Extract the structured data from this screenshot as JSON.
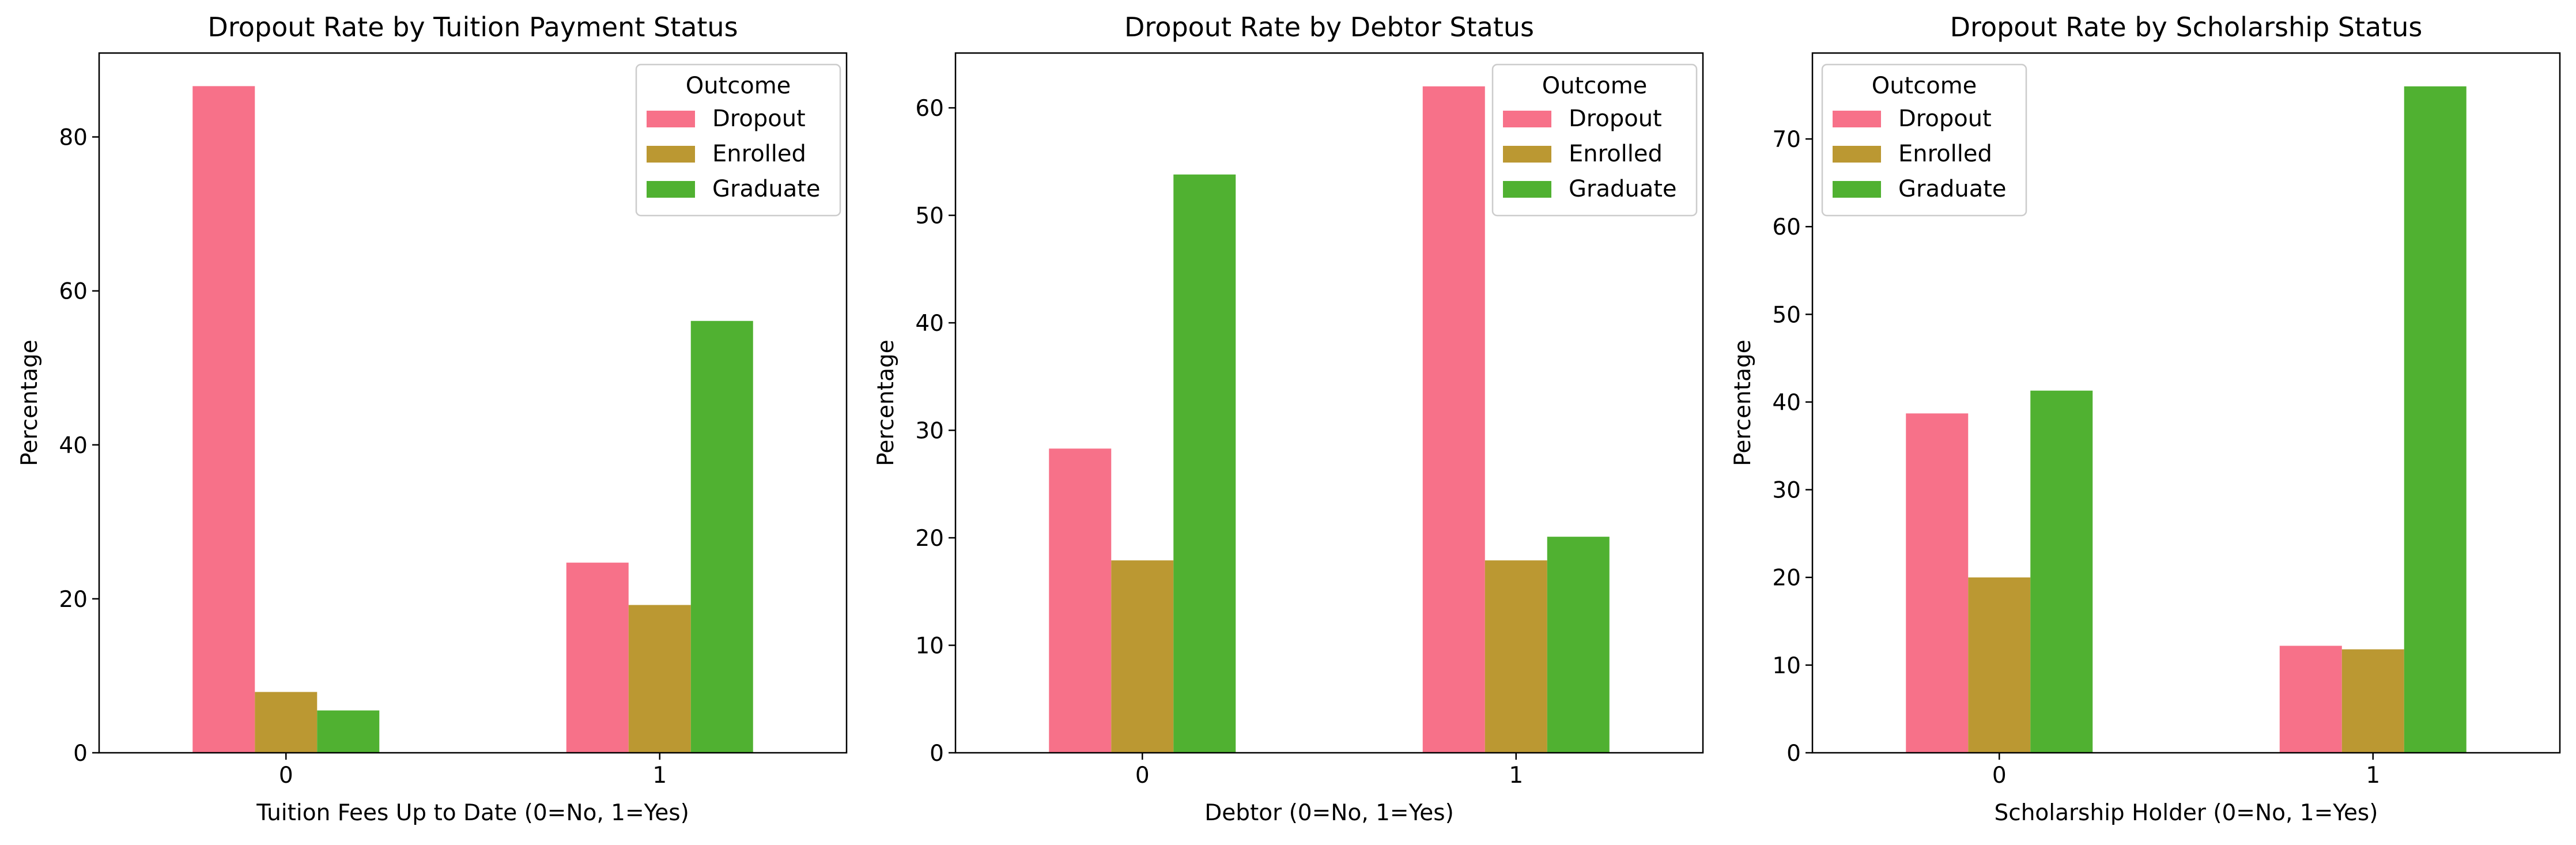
{
  "chart_data": [
    {
      "type": "bar",
      "title": "Dropout Rate by Tuition Payment Status",
      "xlabel": "Tuition Fees Up to Date (0=No, 1=Yes)",
      "ylabel": "Percentage",
      "categories": [
        "0",
        "1"
      ],
      "series": [
        {
          "name": "Dropout",
          "values": [
            86.6,
            24.7
          ]
        },
        {
          "name": "Enrolled",
          "values": [
            7.9,
            19.2
          ]
        },
        {
          "name": "Graduate",
          "values": [
            5.5,
            56.1
          ]
        }
      ],
      "ylim": [
        0,
        90.9
      ],
      "yticks": [
        0,
        20,
        40,
        60,
        80
      ],
      "legend_title": "Outcome",
      "legend_position": "top-right",
      "grid": false
    },
    {
      "type": "bar",
      "title": "Dropout Rate by Debtor Status",
      "xlabel": "Debtor (0=No, 1=Yes)",
      "ylabel": "Percentage",
      "categories": [
        "0",
        "1"
      ],
      "series": [
        {
          "name": "Dropout",
          "values": [
            28.3,
            62.0
          ]
        },
        {
          "name": "Enrolled",
          "values": [
            17.9,
            17.9
          ]
        },
        {
          "name": "Graduate",
          "values": [
            53.8,
            20.1
          ]
        }
      ],
      "ylim": [
        0,
        65.1
      ],
      "yticks": [
        0,
        10,
        20,
        30,
        40,
        50,
        60
      ],
      "legend_title": "Outcome",
      "legend_position": "top-right",
      "grid": false
    },
    {
      "type": "bar",
      "title": "Dropout Rate by Scholarship Status",
      "xlabel": "Scholarship Holder (0=No, 1=Yes)",
      "ylabel": "Percentage",
      "categories": [
        "0",
        "1"
      ],
      "series": [
        {
          "name": "Dropout",
          "values": [
            38.7,
            12.2
          ]
        },
        {
          "name": "Enrolled",
          "values": [
            20.0,
            11.8
          ]
        },
        {
          "name": "Graduate",
          "values": [
            41.3,
            76.0
          ]
        }
      ],
      "ylim": [
        0,
        79.8
      ],
      "yticks": [
        0,
        10,
        20,
        30,
        40,
        50,
        60,
        70
      ],
      "legend_title": "Outcome",
      "legend_position": "top-left",
      "grid": false
    }
  ],
  "colors": {
    "Dropout": "#f77189",
    "Enrolled": "#bb9832",
    "Graduate": "#50b131"
  }
}
